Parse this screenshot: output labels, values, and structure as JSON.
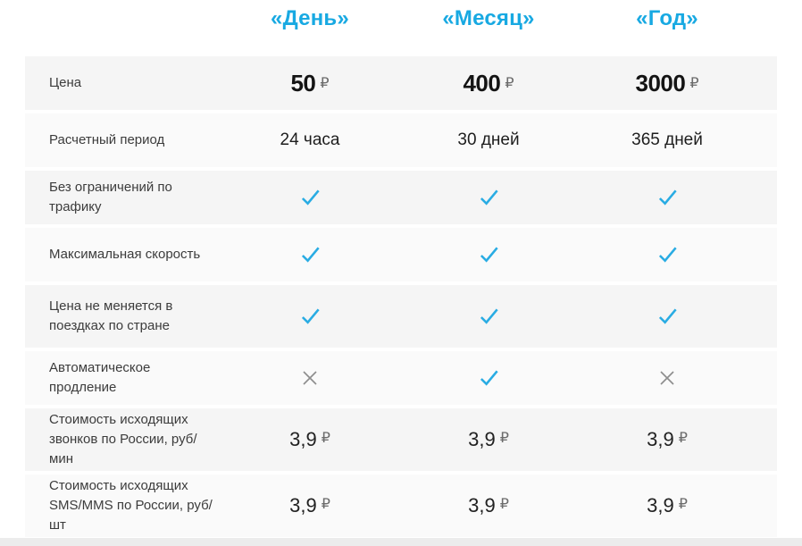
{
  "table": {
    "columns": [
      {
        "id": "day",
        "label": "«День»"
      },
      {
        "id": "month",
        "label": "«Месяц»"
      },
      {
        "id": "year",
        "label": "«Год»"
      }
    ],
    "currency_symbol": "₽",
    "rows": [
      {
        "label": "Цена",
        "type": "price",
        "tall": false,
        "values": [
          "50",
          "400",
          "3000"
        ]
      },
      {
        "label": "Расчетный период",
        "type": "text",
        "tall": false,
        "values": [
          "24 часа",
          "30 дней",
          "365 дней"
        ]
      },
      {
        "label": "Без ограничений по трафику",
        "type": "mark",
        "tall": false,
        "values": [
          "check",
          "check",
          "check"
        ]
      },
      {
        "label": "Максимальная скорость",
        "type": "mark",
        "tall": false,
        "values": [
          "check",
          "check",
          "check"
        ]
      },
      {
        "label": "Цена не меняется в поездках по стране",
        "type": "mark",
        "tall": true,
        "values": [
          "check",
          "check",
          "check"
        ]
      },
      {
        "label": "Автоматическое продление",
        "type": "mark",
        "tall": false,
        "values": [
          "cross",
          "check",
          "cross"
        ]
      },
      {
        "label": "Стоимость исходящих звонков по России, руб/мин",
        "type": "rate",
        "tall": true,
        "values": [
          "3,9",
          "3,9",
          "3,9"
        ]
      },
      {
        "label": "Стоимость исходящих SMS/MMS по России, руб/шт",
        "type": "rate",
        "tall": true,
        "values": [
          "3,9",
          "3,9",
          "3,9"
        ]
      }
    ]
  },
  "theme": {
    "accent": "#18a9e2",
    "check_color": "#29ace3",
    "cross_color": "#8e8e8e",
    "row_bg_odd": "#f5f5f5",
    "row_bg_even": "#fafafa",
    "bottom_strip": "#ececec"
  }
}
